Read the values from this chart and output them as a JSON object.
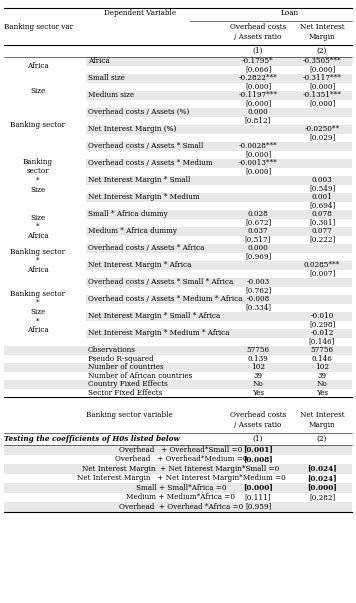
{
  "title_top_left": "Dependent Variable",
  "title_top_right": "Loan",
  "col_header_left": "Banking sector var",
  "col_header_mid": "Overhead costs\n/ Assets ratio",
  "col_header_right": "Net Interest\nMargin",
  "col1_label": "(1)",
  "col2_label": "(2)",
  "rows": [
    {
      "group": "Africa",
      "label": "Africa",
      "c1": "-0.1795*",
      "c2": "-0.3505***",
      "shaded": true,
      "label_shaded": false,
      "grp_row": 0,
      "grp_total": 2
    },
    {
      "group": "Africa",
      "label": "",
      "c1": "[0.066]",
      "c2": "[0.000]",
      "shaded": false,
      "label_shaded": false,
      "grp_row": 1,
      "grp_total": 2
    },
    {
      "group": "Size",
      "label": "Small size",
      "c1": "-0.2822***",
      "c2": "-0.3117***",
      "shaded": true,
      "label_shaded": false,
      "grp_row": 0,
      "grp_total": 4
    },
    {
      "group": "Size",
      "label": "",
      "c1": "[0.000]",
      "c2": "[0.000]",
      "shaded": false,
      "label_shaded": false,
      "grp_row": 1,
      "grp_total": 4
    },
    {
      "group": "Size",
      "label": "Medium size",
      "c1": "-0.1197***",
      "c2": "-0.1351***",
      "shaded": true,
      "label_shaded": false,
      "grp_row": 2,
      "grp_total": 4
    },
    {
      "group": "Size",
      "label": "",
      "c1": "[0.000]",
      "c2": "[0.000]",
      "shaded": false,
      "label_shaded": false,
      "grp_row": 3,
      "grp_total": 4
    },
    {
      "group": "Banking sector",
      "label": "Overhead costs / Assets (%)",
      "c1": "0.000",
      "c2": "",
      "shaded": true,
      "label_shaded": false,
      "grp_row": 0,
      "grp_total": 4
    },
    {
      "group": "Banking sector",
      "label": "",
      "c1": "[0.812]",
      "c2": "",
      "shaded": false,
      "label_shaded": false,
      "grp_row": 1,
      "grp_total": 4
    },
    {
      "group": "Banking sector",
      "label": "Net Interest Margin (%)",
      "c1": "",
      "c2": "-0.0250**",
      "shaded": true,
      "label_shaded": false,
      "grp_row": 2,
      "grp_total": 4
    },
    {
      "group": "Banking sector",
      "label": "",
      "c1": "",
      "c2": "[0.029]",
      "shaded": false,
      "label_shaded": false,
      "grp_row": 3,
      "grp_total": 4
    },
    {
      "group": "Banking\nsector\n*\nSize",
      "label": "Overhead costs / Assets * Small",
      "c1": "-0.0028***",
      "c2": "",
      "shaded": true,
      "label_shaded": false,
      "grp_row": 0,
      "grp_total": 8
    },
    {
      "group": "Banking\nsector\n*\nSize",
      "label": "",
      "c1": "[0.000]",
      "c2": "",
      "shaded": false,
      "label_shaded": false,
      "grp_row": 1,
      "grp_total": 8
    },
    {
      "group": "Banking\nsector\n*\nSize",
      "label": "Overhead costs / Assets * Medium",
      "c1": "-0.0013***",
      "c2": "",
      "shaded": true,
      "label_shaded": false,
      "grp_row": 2,
      "grp_total": 8
    },
    {
      "group": "Banking\nsector\n*\nSize",
      "label": "",
      "c1": "[0.000]",
      "c2": "",
      "shaded": false,
      "label_shaded": false,
      "grp_row": 3,
      "grp_total": 8
    },
    {
      "group": "Banking\nsector\n*\nSize",
      "label": "Net Interest Margin * Small",
      "c1": "",
      "c2": "0.003",
      "shaded": true,
      "label_shaded": false,
      "grp_row": 4,
      "grp_total": 8
    },
    {
      "group": "Banking\nsector\n*\nSize",
      "label": "",
      "c1": "",
      "c2": "[0.549]",
      "shaded": false,
      "label_shaded": false,
      "grp_row": 5,
      "grp_total": 8
    },
    {
      "group": "Banking\nsector\n*\nSize",
      "label": "Net Interest Margin * Medium",
      "c1": "",
      "c2": "0.001",
      "shaded": true,
      "label_shaded": false,
      "grp_row": 6,
      "grp_total": 8
    },
    {
      "group": "Banking\nsector\n*\nSize",
      "label": "",
      "c1": "",
      "c2": "[0.694]",
      "shaded": false,
      "label_shaded": false,
      "grp_row": 7,
      "grp_total": 8
    },
    {
      "group": "Size\n*\nAfrica",
      "label": "Small * Africa dummy",
      "c1": "0.028",
      "c2": "0.078",
      "shaded": true,
      "label_shaded": false,
      "grp_row": 0,
      "grp_total": 4
    },
    {
      "group": "Size\n*\nAfrica",
      "label": "",
      "c1": "[0.672]",
      "c2": "[0.301]",
      "shaded": false,
      "label_shaded": false,
      "grp_row": 1,
      "grp_total": 4
    },
    {
      "group": "Size\n*\nAfrica",
      "label": "Medium * Africa dummy",
      "c1": "0.037",
      "c2": "0.077",
      "shaded": true,
      "label_shaded": false,
      "grp_row": 2,
      "grp_total": 4
    },
    {
      "group": "Size\n*\nAfrica",
      "label": "",
      "c1": "[0.517]",
      "c2": "[0.222]",
      "shaded": false,
      "label_shaded": false,
      "grp_row": 3,
      "grp_total": 4
    },
    {
      "group": "Banking sector\n*\nAfrica",
      "label": "Overhead costs / Assets * Africa",
      "c1": "0.000",
      "c2": "",
      "shaded": true,
      "label_shaded": false,
      "grp_row": 0,
      "grp_total": 4
    },
    {
      "group": "Banking sector\n*\nAfrica",
      "label": "",
      "c1": "[0.969]",
      "c2": "",
      "shaded": false,
      "label_shaded": false,
      "grp_row": 1,
      "grp_total": 4
    },
    {
      "group": "Banking sector\n*\nAfrica",
      "label": "Net Interest Margin * Africa",
      "c1": "",
      "c2": "0.0285***",
      "shaded": true,
      "label_shaded": false,
      "grp_row": 2,
      "grp_total": 4
    },
    {
      "group": "Banking sector\n*\nAfrica",
      "label": "",
      "c1": "",
      "c2": "[0.007]",
      "shaded": false,
      "label_shaded": false,
      "grp_row": 3,
      "grp_total": 4
    },
    {
      "group": "Banking sector\n*\nSize\n*\nAfrica",
      "label": "Overhead costs / Assets * Small * Africa",
      "c1": "-0.003",
      "c2": "",
      "shaded": true,
      "label_shaded": false,
      "grp_row": 0,
      "grp_total": 8
    },
    {
      "group": "Banking sector\n*\nSize\n*\nAfrica",
      "label": "",
      "c1": "[0.762]",
      "c2": "",
      "shaded": false,
      "label_shaded": false,
      "grp_row": 1,
      "grp_total": 8
    },
    {
      "group": "Banking sector\n*\nSize\n*\nAfrica",
      "label": "Overhead costs / Assets * Medium * Africa",
      "c1": "-0.008",
      "c2": "",
      "shaded": true,
      "label_shaded": false,
      "grp_row": 2,
      "grp_total": 8
    },
    {
      "group": "Banking sector\n*\nSize\n*\nAfrica",
      "label": "",
      "c1": "[0.334]",
      "c2": "",
      "shaded": false,
      "label_shaded": false,
      "grp_row": 3,
      "grp_total": 8
    },
    {
      "group": "Banking sector\n*\nSize\n*\nAfrica",
      "label": "Net Interest Margin * Small * Africa",
      "c1": "",
      "c2": "-0.010",
      "shaded": true,
      "label_shaded": false,
      "grp_row": 4,
      "grp_total": 8
    },
    {
      "group": "Banking sector\n*\nSize\n*\nAfrica",
      "label": "",
      "c1": "",
      "c2": "[0.298]",
      "shaded": false,
      "label_shaded": false,
      "grp_row": 5,
      "grp_total": 8
    },
    {
      "group": "Banking sector\n*\nSize\n*\nAfrica",
      "label": "Net Interest Margin * Medium * Africa",
      "c1": "",
      "c2": "-0.012",
      "shaded": true,
      "label_shaded": false,
      "grp_row": 6,
      "grp_total": 8
    },
    {
      "group": "Banking sector\n*\nSize\n*\nAfrica",
      "label": "",
      "c1": "",
      "c2": "[0.146]",
      "shaded": false,
      "label_shaded": false,
      "grp_row": 7,
      "grp_total": 8
    },
    {
      "group": "",
      "label": "Observations",
      "c1": "57756",
      "c2": "57756",
      "shaded": true,
      "label_shaded": true,
      "grp_row": 0,
      "grp_total": 1
    },
    {
      "group": "",
      "label": "Pseudo R-squared",
      "c1": "0.139",
      "c2": "0.146",
      "shaded": false,
      "label_shaded": false,
      "grp_row": 0,
      "grp_total": 1
    },
    {
      "group": "",
      "label": "Number of countries",
      "c1": "102",
      "c2": "102",
      "shaded": true,
      "label_shaded": true,
      "grp_row": 0,
      "grp_total": 1
    },
    {
      "group": "",
      "label": "Number of African countries",
      "c1": "39",
      "c2": "39",
      "shaded": false,
      "label_shaded": false,
      "grp_row": 0,
      "grp_total": 1
    },
    {
      "group": "",
      "label": "Country Fixed Effects",
      "c1": "No",
      "c2": "No",
      "shaded": true,
      "label_shaded": true,
      "grp_row": 0,
      "grp_total": 1
    },
    {
      "group": "",
      "label": "Sector Fixed Effects",
      "c1": "Yes",
      "c2": "Yes",
      "shaded": false,
      "label_shaded": false,
      "grp_row": 0,
      "grp_total": 1
    }
  ],
  "bottom_header_left": "Banking sector variable",
  "bottom_header_mid": "Overhead costs\n/ Assets ratio",
  "bottom_header_right": "Net Interest\nMargin",
  "bottom_subtitle": "Testing the coefficients of H0s listed below",
  "bottom_col1": "(1)",
  "bottom_col2": "(2)",
  "bottom_rows": [
    {
      "label": "Overhead   + Overhead*Small =0",
      "c1": "[0.001]",
      "c2": "",
      "c1_bold": true,
      "c2_bold": false,
      "shaded": true
    },
    {
      "label": "Overhead   + Overhead*Medium =0",
      "c1": "[0.008]",
      "c2": "",
      "c1_bold": true,
      "c2_bold": false,
      "shaded": false
    },
    {
      "label": "Net Interest Margin  + Net Interest Margin*Small =0",
      "c1": "",
      "c2": "[0.024]",
      "c1_bold": false,
      "c2_bold": true,
      "shaded": true
    },
    {
      "label": "Net Interest Margin   + Net Interest Margin*Medium =0",
      "c1": "",
      "c2": "[0.024]",
      "c1_bold": false,
      "c2_bold": true,
      "shaded": false
    },
    {
      "label": "Small + Small*Africa =0",
      "c1": "[0.000]",
      "c2": "[0.000]",
      "c1_bold": true,
      "c2_bold": true,
      "shaded": true
    },
    {
      "label": "Medium + Medium*Africa =0",
      "c1": "[0.111]",
      "c2": "[0.282]",
      "c1_bold": false,
      "c2_bold": false,
      "shaded": false
    },
    {
      "label": "Overhead  + Overhead *Africa =0",
      "c1": "[0.959]",
      "c2": "",
      "c1_bold": false,
      "c2_bold": false,
      "shaded": true
    }
  ],
  "bg_shaded": "#e8e8e8",
  "bg_white": "#ffffff",
  "text_color": "#000000",
  "font_size": 5.2,
  "header_font_size": 5.5
}
